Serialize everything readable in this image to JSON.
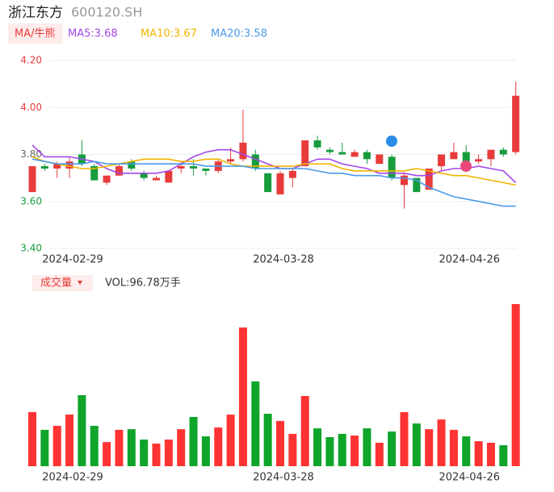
{
  "header": {
    "title": "浙江东方",
    "code": "600120.SH",
    "ma_button": "MA/牛熊",
    "volume_button": "成交量",
    "volume_label": "VOL:96.78万手"
  },
  "chart_data": [
    {
      "type": "candlestick",
      "categories": [
        null,
        null,
        null,
        "2024-02-29",
        null,
        null,
        null,
        null,
        null,
        null,
        null,
        null,
        null,
        null,
        null,
        null,
        null,
        null,
        null,
        null,
        "2024-03-28",
        null,
        null,
        null,
        null,
        null,
        null,
        null,
        null,
        null,
        null,
        null,
        null,
        null,
        null,
        "2024-04-26",
        null,
        null,
        null,
        null
      ],
      "open": [
        3.64,
        3.75,
        3.74,
        3.74,
        3.8,
        3.75,
        3.68,
        3.71,
        3.77,
        3.72,
        3.69,
        3.68,
        3.74,
        3.75,
        3.74,
        3.73,
        3.77,
        3.78,
        3.8,
        3.72,
        3.63,
        3.7,
        3.75,
        3.86,
        3.82,
        3.81,
        3.79,
        3.81,
        3.76,
        3.79,
        3.67,
        3.7,
        3.65,
        3.75,
        3.78,
        3.81,
        3.77,
        3.78,
        3.82,
        3.81
      ],
      "close": [
        3.75,
        3.74,
        3.76,
        3.77,
        3.76,
        3.69,
        3.71,
        3.75,
        3.74,
        3.7,
        3.7,
        3.73,
        3.75,
        3.74,
        3.73,
        3.77,
        3.78,
        3.85,
        3.74,
        3.64,
        3.72,
        3.73,
        3.86,
        3.83,
        3.81,
        3.8,
        3.81,
        3.78,
        3.8,
        3.7,
        3.71,
        3.64,
        3.74,
        3.8,
        3.81,
        3.77,
        3.78,
        3.82,
        3.8,
        4.05
      ],
      "high": [
        3.75,
        3.76,
        3.77,
        3.79,
        3.86,
        3.76,
        3.71,
        3.76,
        3.78,
        3.73,
        3.71,
        3.73,
        3.77,
        3.78,
        3.74,
        3.78,
        3.83,
        3.99,
        3.82,
        3.72,
        3.73,
        3.74,
        3.86,
        3.88,
        3.83,
        3.85,
        3.82,
        3.82,
        3.8,
        3.8,
        3.72,
        3.7,
        3.74,
        3.8,
        3.85,
        3.84,
        3.8,
        3.82,
        3.83,
        4.11
      ],
      "low": [
        3.64,
        3.73,
        3.7,
        3.7,
        3.75,
        3.69,
        3.67,
        3.71,
        3.73,
        3.69,
        3.69,
        3.68,
        3.72,
        3.71,
        3.71,
        3.72,
        3.76,
        3.77,
        3.73,
        3.64,
        3.63,
        3.66,
        3.75,
        3.82,
        3.8,
        3.8,
        3.79,
        3.76,
        3.76,
        3.69,
        3.57,
        3.64,
        3.65,
        3.73,
        3.78,
        3.77,
        3.76,
        3.75,
        3.79,
        3.8
      ],
      "up_color": "#e83b3b",
      "down_color": "#169c3c",
      "series": [
        {
          "name": "MA5:3.68",
          "color": "#a347e6",
          "values": [
            3.84,
            3.79,
            3.79,
            3.79,
            3.78,
            3.77,
            3.74,
            3.72,
            3.72,
            3.72,
            3.72,
            3.73,
            3.76,
            3.79,
            3.81,
            3.82,
            3.82,
            3.8,
            3.78,
            3.76,
            3.74,
            3.74,
            3.76,
            3.78,
            3.78,
            3.76,
            3.75,
            3.74,
            3.72,
            3.72,
            3.72,
            3.71,
            3.71,
            3.73,
            3.74,
            3.74,
            3.75,
            3.74,
            3.73,
            3.68
          ]
        },
        {
          "name": "MA10:3.67",
          "color": "#f0b400",
          "values": [
            3.79,
            3.77,
            3.76,
            3.75,
            3.74,
            3.74,
            3.75,
            3.76,
            3.77,
            3.78,
            3.78,
            3.78,
            3.77,
            3.77,
            3.78,
            3.78,
            3.76,
            3.75,
            3.75,
            3.75,
            3.75,
            3.75,
            3.76,
            3.76,
            3.76,
            3.74,
            3.73,
            3.73,
            3.73,
            3.73,
            3.73,
            3.74,
            3.73,
            3.72,
            3.71,
            3.71,
            3.7,
            3.69,
            3.68,
            3.67
          ]
        },
        {
          "name": "MA20:3.58",
          "color": "#4a9be8",
          "values": [
            3.78,
            3.77,
            3.76,
            3.76,
            3.76,
            3.77,
            3.76,
            3.76,
            3.76,
            3.76,
            3.76,
            3.76,
            3.76,
            3.76,
            3.75,
            3.75,
            3.75,
            3.75,
            3.74,
            3.74,
            3.74,
            3.74,
            3.74,
            3.73,
            3.72,
            3.72,
            3.71,
            3.71,
            3.71,
            3.7,
            3.7,
            3.69,
            3.66,
            3.64,
            3.62,
            3.61,
            3.6,
            3.59,
            3.58,
            3.58
          ]
        }
      ],
      "ylim": [
        3.4,
        4.2
      ],
      "yticks": [
        {
          "value": 4.2,
          "label": "4.20"
        },
        {
          "value": 4.0,
          "label": "4.00"
        },
        {
          "value": 3.8,
          "label": "3.80"
        },
        {
          "value": 3.6,
          "label": "3.60"
        },
        {
          "value": 3.4,
          "label": "3.40"
        }
      ],
      "ytick_colors": [
        "#e83b3b",
        "#e83b3b",
        "#666666",
        "#169c3c",
        "#169c3c"
      ],
      "grid": true
    },
    {
      "type": "bar",
      "values": [
        32.3,
        21.7,
        24.1,
        30.8,
        42.4,
        24.1,
        14.4,
        21.7,
        22.1,
        15.9,
        13.5,
        15.9,
        22.1,
        29.4,
        17.8,
        23.1,
        30.8,
        82.8,
        50.6,
        31.3,
        27.0,
        19.3,
        41.9,
        22.6,
        17.3,
        19.3,
        18.3,
        22.6,
        14.0,
        20.7,
        32.3,
        25.5,
        22.1,
        27.9,
        21.7,
        17.8,
        14.9,
        14.0,
        12.5,
        96.78
      ],
      "ylim": [
        0,
        96.78
      ]
    }
  ]
}
